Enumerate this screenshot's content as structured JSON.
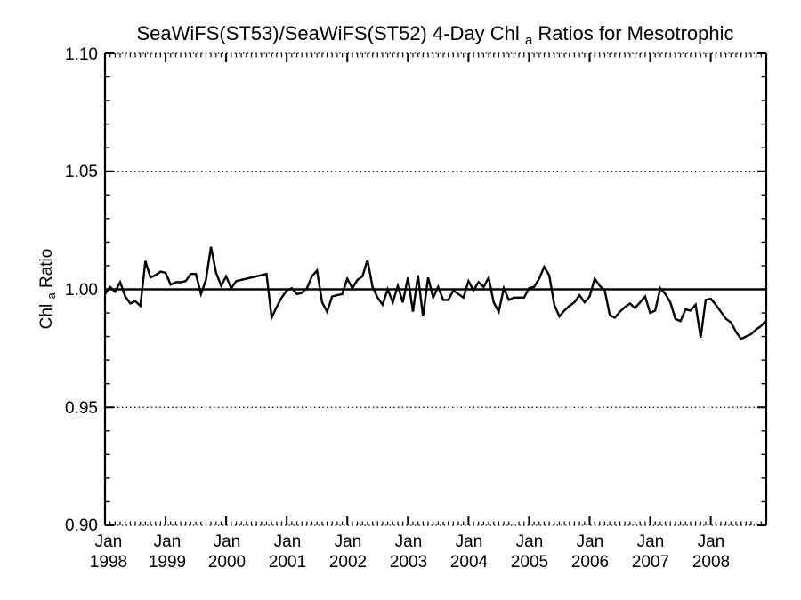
{
  "title": {
    "prefix": "SeaWiFS(ST53)/SeaWiFS(ST52) 4-Day Chl",
    "subscript": "a",
    "suffix": " Ratios for Mesotrophic"
  },
  "y_axis": {
    "label": {
      "prefix": "Chl",
      "subscript": "a",
      "suffix": " Ratio"
    },
    "tick_labels": [
      "1.10",
      "1.05",
      "1.00",
      "0.95",
      "0.90"
    ]
  },
  "x_axis": {
    "tick_labels": [
      {
        "month": "Jan",
        "year": "1998"
      },
      {
        "month": "Jan",
        "year": "1999"
      },
      {
        "month": "Jan",
        "year": "2000"
      },
      {
        "month": "Jan",
        "year": "2001"
      },
      {
        "month": "Jan",
        "year": "2002"
      },
      {
        "month": "Jan",
        "year": "2003"
      },
      {
        "month": "Jan",
        "year": "2004"
      },
      {
        "month": "Jan",
        "year": "2005"
      },
      {
        "month": "Jan",
        "year": "2006"
      },
      {
        "month": "Jan",
        "year": "2007"
      },
      {
        "month": "Jan",
        "year": "2008"
      }
    ]
  },
  "colors": {
    "line": "#000000",
    "axis": "#000000",
    "grid": "#000000",
    "background": "#ffffff"
  },
  "chart_data": {
    "type": "line",
    "title": "SeaWiFS(ST53)/SeaWiFS(ST52) 4-Day Chl_a Ratios for Mesotrophic",
    "xlabel": "",
    "ylabel": "Chl_a Ratio",
    "ylim": [
      0.9,
      1.1
    ],
    "y_major_tick_step": 0.05,
    "y_minor_tick_step": 0.01,
    "grid": "dotted horizontal lines at 0.90, 0.95, 1.05, 1.10; solid reference line at 1.00",
    "reference_line_y": 1.0,
    "dotted_gridline_values": [
      0.9,
      0.95,
      1.05,
      1.1
    ],
    "legend": "none",
    "x_start": "1998-01",
    "x_end": "2008-12",
    "x_cadence": "monthly",
    "x_tick_years": [
      1998,
      1999,
      2000,
      2001,
      2002,
      2003,
      2004,
      2005,
      2006,
      2007,
      2008
    ],
    "series": [
      {
        "name": "SeaWiFS(ST53)/SeaWiFS(ST52) Chl_a ratio",
        "values": [
          0.998,
          1.001,
          0.999,
          1.003,
          0.997,
          0.994,
          0.995,
          0.993,
          1.012,
          1.005,
          1.006,
          1.0075,
          1.007,
          1.002,
          1.003,
          1.003,
          1.0035,
          1.0065,
          1.0065,
          0.998,
          1.004,
          1.018,
          1.007,
          1.0015,
          1.0055,
          1.0005,
          1.0035,
          1.004,
          1.0045,
          1.005,
          1.0055,
          1.006,
          1.0065,
          0.988,
          0.9925,
          0.9965,
          0.9995,
          1.0005,
          0.998,
          0.9985,
          1.0005,
          1.0055,
          1.008,
          0.9945,
          0.9905,
          0.997,
          0.9975,
          0.998,
          1.0045,
          1.0005,
          1.004,
          1.0055,
          1.0125,
          1.001,
          0.9965,
          0.9935,
          1.0,
          0.9945,
          1.0015,
          0.9945,
          1.005,
          0.9905,
          1.006,
          0.9885,
          1.005,
          0.9965,
          1.001,
          0.9955,
          0.9955,
          0.9995,
          0.998,
          0.9965,
          1.0035,
          0.9995,
          1.003,
          1.001,
          1.005,
          0.9945,
          0.9905,
          1.0005,
          0.9955,
          0.9965,
          0.9965,
          0.9965,
          1.0005,
          1.001,
          1.0045,
          1.0095,
          1.006,
          0.9935,
          0.9885,
          0.991,
          0.993,
          0.9945,
          0.9975,
          0.9945,
          0.997,
          1.0045,
          1.0015,
          0.9995,
          0.989,
          0.988,
          0.9905,
          0.9925,
          0.994,
          0.992,
          0.9945,
          0.997,
          0.99,
          0.991,
          1.0005,
          0.998,
          0.9945,
          0.9875,
          0.9865,
          0.9915,
          0.991,
          0.9935,
          0.9795,
          0.9955,
          0.996,
          0.9935,
          0.9905,
          0.9875,
          0.986,
          0.982,
          0.979,
          0.98,
          0.981,
          0.983,
          0.9845,
          0.987
        ]
      }
    ]
  }
}
